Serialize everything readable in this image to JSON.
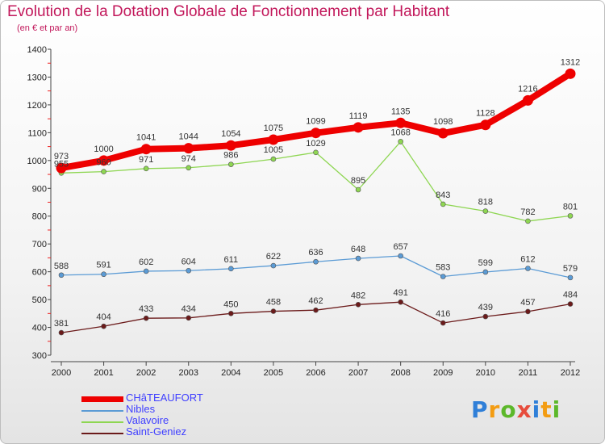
{
  "chart_data": {
    "type": "line",
    "title": "Evolution de la Dotation Globale de Fonctionnement par Habitant",
    "subtitle": "(en € et par an)",
    "xlabel": "",
    "ylabel": "",
    "ylim": [
      300,
      1400
    ],
    "yticks": [
      300,
      400,
      500,
      600,
      700,
      800,
      900,
      1000,
      1100,
      1200,
      1300,
      1400
    ],
    "grid": false,
    "legend_position": "bottom-left",
    "categories": [
      "2000",
      "2001",
      "2002",
      "2003",
      "2004",
      "2005",
      "2006",
      "2007",
      "2008",
      "2009",
      "2010",
      "2011",
      "2012"
    ],
    "series": [
      {
        "name": "CHâTEAUFORT",
        "color": "#ee0000",
        "values": [
          973,
          1000,
          1041,
          1044,
          1054,
          1075,
          1099,
          1119,
          1135,
          1098,
          1128,
          1216,
          1312
        ]
      },
      {
        "name": "Nibles",
        "color": "#5b9bd5",
        "values": [
          588,
          591,
          602,
          604,
          611,
          622,
          636,
          648,
          657,
          583,
          599,
          612,
          579
        ]
      },
      {
        "name": "Valavoire",
        "color": "#8ed652",
        "values": [
          955,
          960,
          971,
          974,
          986,
          1005,
          1029,
          895,
          1068,
          843,
          818,
          782,
          801
        ]
      },
      {
        "name": "Saint-Geniez",
        "color": "#6b1a1a",
        "values": [
          381,
          404,
          433,
          434,
          450,
          458,
          462,
          482,
          491,
          416,
          439,
          457,
          484
        ]
      }
    ]
  },
  "logo": {
    "letters": [
      "P",
      "r",
      "o",
      "x",
      "i",
      "t",
      "i"
    ],
    "colors": [
      "#2f7fd8",
      "#f39c12",
      "#5cb82a",
      "#e74c3c",
      "#2f7fd8",
      "#f39c12",
      "#5cb82a"
    ]
  }
}
